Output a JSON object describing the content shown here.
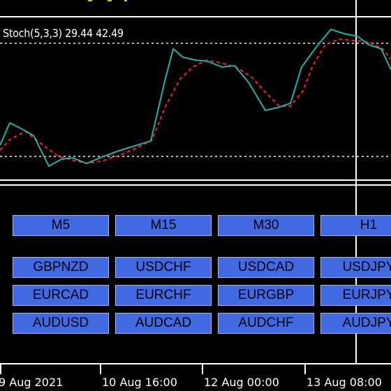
{
  "indicator": {
    "label": "Stoch(5,3,3) 29.44 42.49"
  },
  "timeframes": [
    {
      "label": "M5"
    },
    {
      "label": "M15"
    },
    {
      "label": "M30"
    },
    {
      "label": "H1"
    }
  ],
  "symbols": [
    [
      {
        "label": "GBPNZD"
      },
      {
        "label": "USDCHF"
      },
      {
        "label": "USDCAD"
      },
      {
        "label": "USDJPY"
      }
    ],
    [
      {
        "label": "EURCAD"
      },
      {
        "label": "EURCHF"
      },
      {
        "label": "EURGBP"
      },
      {
        "label": "EURJPY"
      }
    ],
    [
      {
        "label": "AUDUSD"
      },
      {
        "label": "AUDCAD"
      },
      {
        "label": "AUDCHF"
      },
      {
        "label": "AUDJPY"
      }
    ]
  ],
  "time_axis": [
    {
      "label": "9 Aug 2021"
    },
    {
      "label": "10 Aug 16:00"
    },
    {
      "label": "12 Aug 00:00"
    },
    {
      "label": "13 Aug 08:00"
    }
  ],
  "colors": {
    "main_line": "#20b2aa",
    "signal_line": "#ff0000",
    "button_bg": "#4169e1",
    "background": "#000000"
  }
}
